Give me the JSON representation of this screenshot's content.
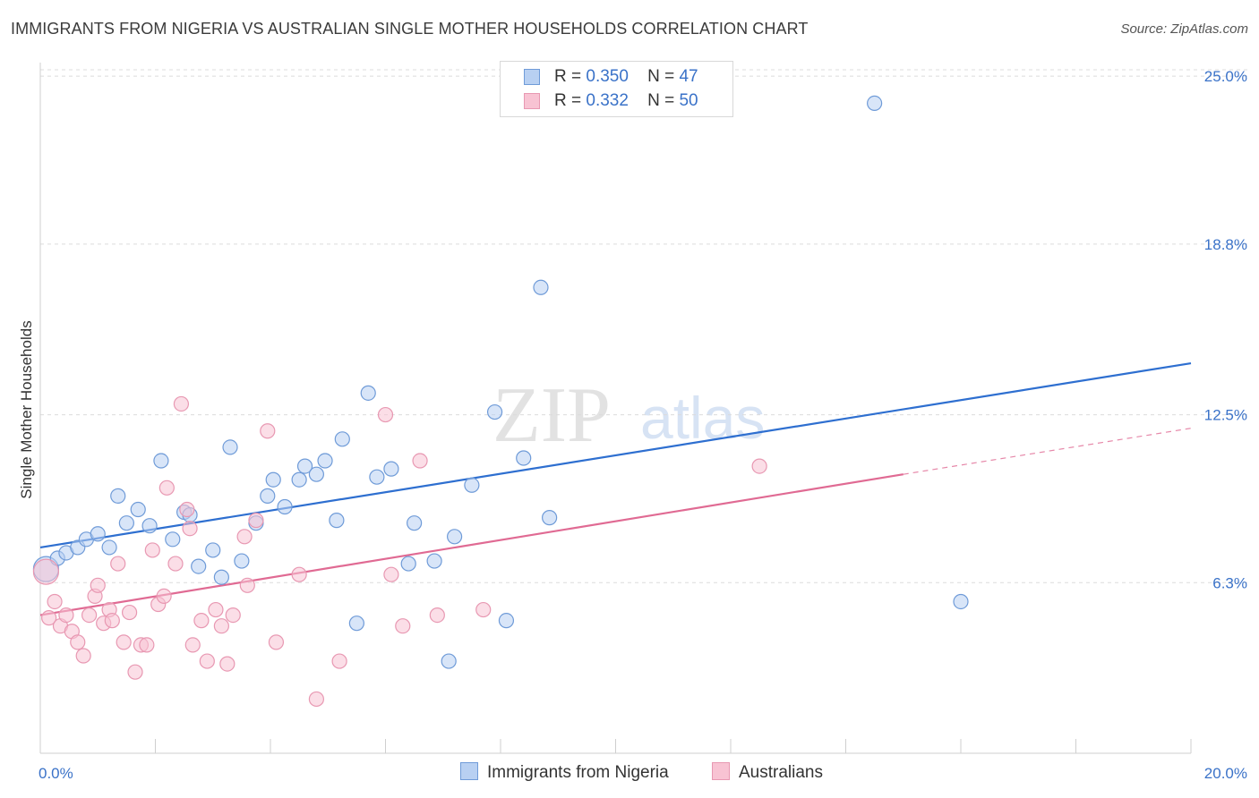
{
  "header": {
    "title": "IMMIGRANTS FROM NIGERIA VS AUSTRALIAN SINGLE MOTHER HOUSEHOLDS CORRELATION CHART",
    "source": "Source: ZipAtlas.com"
  },
  "watermark": {
    "zip": "ZIP",
    "atlas": "atlas"
  },
  "legend": {
    "r_label": "R =",
    "n_label": "N =",
    "rows": [
      {
        "r": "0.350",
        "n": "47"
      },
      {
        "r": "0.332",
        "n": "50"
      }
    ]
  },
  "colors": {
    "blue_fill": "#b8d0f2",
    "blue_stroke": "#6f9bd8",
    "blue_line": "#2e6fd0",
    "pink_fill": "#f8c3d3",
    "pink_stroke": "#e898b2",
    "pink_line": "#e06a93",
    "grid": "#dcdcdc",
    "tick_text": "#3a72c8"
  },
  "chart_data": {
    "type": "scatter",
    "title": "IMMIGRANTS FROM NIGERIA VS AUSTRALIAN SINGLE MOTHER HOUSEHOLDS CORRELATION CHART",
    "xlabel": "",
    "ylabel": "Single Mother Households",
    "xlim": [
      0,
      20
    ],
    "ylim": [
      0,
      25.5
    ],
    "x_tick_labels": [
      "0.0%",
      "20.0%"
    ],
    "y_ticks": [
      6.3,
      12.5,
      18.8,
      25.0
    ],
    "y_tick_labels": [
      "6.3%",
      "12.5%",
      "18.8%",
      "25.0%"
    ],
    "grid": true,
    "legend_position": "top-center",
    "series": [
      {
        "name": "Immigrants from Nigeria",
        "color": "#6f9bd8",
        "r": 0.35,
        "n": 47,
        "trend": {
          "x0": 0.0,
          "y0": 7.6,
          "x1": 20.0,
          "y1": 14.4
        },
        "points": [
          [
            0.1,
            6.8
          ],
          [
            0.3,
            7.2
          ],
          [
            0.45,
            7.4
          ],
          [
            0.65,
            7.6
          ],
          [
            0.8,
            7.9
          ],
          [
            1.0,
            8.1
          ],
          [
            1.2,
            7.6
          ],
          [
            1.35,
            9.5
          ],
          [
            1.5,
            8.5
          ],
          [
            1.7,
            9.0
          ],
          [
            1.9,
            8.4
          ],
          [
            2.1,
            10.8
          ],
          [
            2.3,
            7.9
          ],
          [
            2.5,
            8.9
          ],
          [
            2.6,
            8.8
          ],
          [
            2.75,
            6.9
          ],
          [
            3.0,
            7.5
          ],
          [
            3.15,
            6.5
          ],
          [
            3.3,
            11.3
          ],
          [
            3.5,
            7.1
          ],
          [
            3.75,
            8.5
          ],
          [
            3.95,
            9.5
          ],
          [
            4.05,
            10.1
          ],
          [
            4.25,
            9.1
          ],
          [
            4.5,
            10.1
          ],
          [
            4.6,
            10.6
          ],
          [
            4.8,
            10.3
          ],
          [
            4.95,
            10.8
          ],
          [
            5.15,
            8.6
          ],
          [
            5.25,
            11.6
          ],
          [
            5.5,
            4.8
          ],
          [
            5.7,
            13.3
          ],
          [
            5.85,
            10.2
          ],
          [
            6.1,
            10.5
          ],
          [
            6.4,
            7.0
          ],
          [
            6.5,
            8.5
          ],
          [
            6.85,
            7.1
          ],
          [
            7.1,
            3.4
          ],
          [
            7.2,
            8.0
          ],
          [
            7.5,
            9.9
          ],
          [
            7.9,
            12.6
          ],
          [
            8.1,
            4.9
          ],
          [
            8.4,
            10.9
          ],
          [
            8.7,
            17.2
          ],
          [
            8.85,
            8.7
          ],
          [
            14.5,
            24.0
          ],
          [
            16.0,
            5.6
          ]
        ]
      },
      {
        "name": "Australians",
        "color": "#e898b2",
        "r": 0.332,
        "n": 50,
        "trend": {
          "x0": 0.0,
          "y0": 5.1,
          "x1": 15.0,
          "y1": 10.3
        },
        "trend_dashed": {
          "x0": 15.0,
          "y0": 10.3,
          "x1": 20.0,
          "y1": 12.0
        },
        "points": [
          [
            0.1,
            6.7
          ],
          [
            0.15,
            5.0
          ],
          [
            0.25,
            5.6
          ],
          [
            0.35,
            4.7
          ],
          [
            0.45,
            5.1
          ],
          [
            0.55,
            4.5
          ],
          [
            0.65,
            4.1
          ],
          [
            0.75,
            3.6
          ],
          [
            0.85,
            5.1
          ],
          [
            0.95,
            5.8
          ],
          [
            1.0,
            6.2
          ],
          [
            1.1,
            4.8
          ],
          [
            1.2,
            5.3
          ],
          [
            1.25,
            4.9
          ],
          [
            1.35,
            7.0
          ],
          [
            1.45,
            4.1
          ],
          [
            1.55,
            5.2
          ],
          [
            1.65,
            3.0
          ],
          [
            1.75,
            4.0
          ],
          [
            1.85,
            4.0
          ],
          [
            1.95,
            7.5
          ],
          [
            2.05,
            5.5
          ],
          [
            2.15,
            5.8
          ],
          [
            2.2,
            9.8
          ],
          [
            2.35,
            7.0
          ],
          [
            2.45,
            12.9
          ],
          [
            2.55,
            9.0
          ],
          [
            2.6,
            8.3
          ],
          [
            2.65,
            4.0
          ],
          [
            2.8,
            4.9
          ],
          [
            2.9,
            3.4
          ],
          [
            3.05,
            5.3
          ],
          [
            3.15,
            4.7
          ],
          [
            3.25,
            3.3
          ],
          [
            3.35,
            5.1
          ],
          [
            3.55,
            8.0
          ],
          [
            3.6,
            6.2
          ],
          [
            3.75,
            8.6
          ],
          [
            3.95,
            11.9
          ],
          [
            4.1,
            4.1
          ],
          [
            4.5,
            6.6
          ],
          [
            4.8,
            2.0
          ],
          [
            5.2,
            3.4
          ],
          [
            6.0,
            12.5
          ],
          [
            6.1,
            6.6
          ],
          [
            6.3,
            4.7
          ],
          [
            6.6,
            10.8
          ],
          [
            6.9,
            5.1
          ],
          [
            7.7,
            5.3
          ],
          [
            12.5,
            10.6
          ]
        ]
      }
    ]
  }
}
